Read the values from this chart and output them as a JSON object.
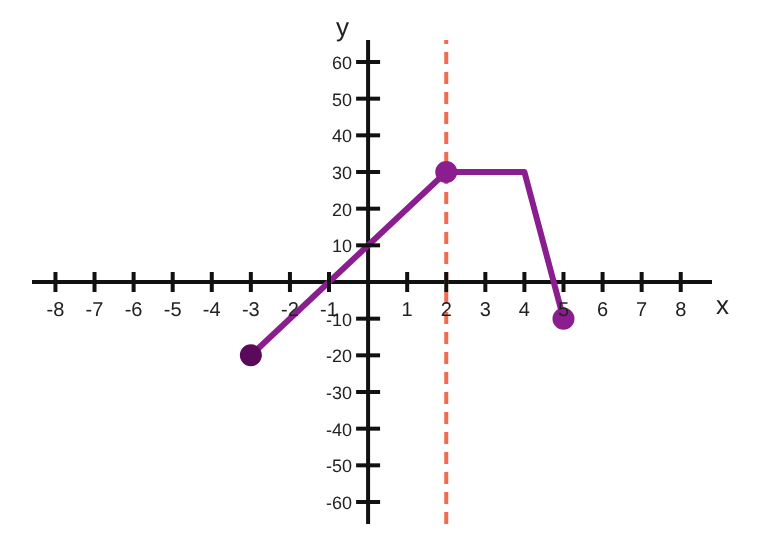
{
  "chart_data": {
    "type": "line",
    "xlabel": "x",
    "ylabel": "y",
    "xlim": [
      -8.6,
      8.8
    ],
    "ylim": [
      -66,
      66
    ],
    "xticks": [
      -8,
      -7,
      -6,
      -5,
      -4,
      -3,
      -2,
      -1,
      1,
      2,
      3,
      4,
      5,
      6,
      7,
      8
    ],
    "yticks": [
      -60,
      -50,
      -40,
      -30,
      -20,
      -10,
      10,
      20,
      30,
      40,
      50,
      60
    ],
    "series": [
      {
        "color": "#8b1e8f",
        "x": [
          -3,
          2,
          4,
          5
        ],
        "values": [
          -20,
          30,
          30,
          -10
        ],
        "marker": "none",
        "line_style": "solid"
      },
      {
        "type": "scatter",
        "color": "#5a0a5a",
        "x": [
          -3
        ],
        "values": [
          -20
        ],
        "marker": "circle"
      },
      {
        "type": "scatter",
        "color": "#8b1e8f",
        "x": [
          2,
          5
        ],
        "values": [
          30,
          -10
        ],
        "marker": "circle"
      }
    ],
    "ref_lines": [
      {
        "axis": "x",
        "value": 2,
        "color": "#f26b4f",
        "line_style": "dashed"
      }
    ]
  }
}
